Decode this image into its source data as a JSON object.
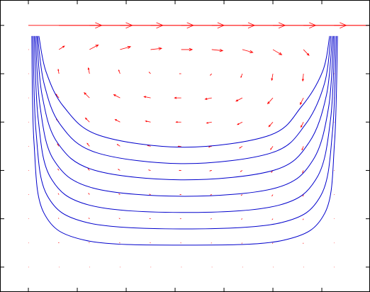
{
  "chart_data": {
    "type": "quiver",
    "xlim": [
      -0.116,
      1.397
    ],
    "ylim": [
      -0.103,
      1.105
    ],
    "xticks": [
      0,
      0.2,
      0.4,
      0.6,
      0.8,
      1,
      1.2
    ],
    "yticks": [
      0,
      0.2,
      0.4,
      0.6,
      0.8,
      1
    ],
    "quiver": {
      "color": "#ff0000",
      "scale": 0.3,
      "x": [
        0,
        0.125,
        0.25,
        0.375,
        0.5,
        0.625,
        0.75,
        0.875,
        1,
        1.125,
        1.25
      ],
      "y": [
        0,
        0.1,
        0.2,
        0.3,
        0.4,
        0.5,
        0.6,
        0.7,
        0.8,
        0.9,
        1
      ],
      "u": [
        [
          0,
          0,
          0,
          0,
          0,
          0,
          0,
          0,
          0,
          0,
          0
        ],
        [
          0,
          -0.003,
          -0.004,
          -0.005,
          -0.005,
          -0.005,
          -0.005,
          -0.005,
          -0.004,
          -0.003,
          0
        ],
        [
          0,
          -0.005,
          -0.008,
          -0.01,
          -0.01,
          -0.01,
          -0.01,
          -0.01,
          -0.008,
          -0.005,
          0
        ],
        [
          0,
          -0.008,
          -0.012,
          -0.014,
          -0.015,
          -0.015,
          -0.015,
          -0.014,
          -0.012,
          -0.008,
          0
        ],
        [
          0,
          -0.013,
          -0.02,
          -0.024,
          -0.025,
          -0.025,
          -0.025,
          -0.024,
          -0.02,
          -0.013,
          0
        ],
        [
          0,
          -0.02,
          -0.032,
          -0.038,
          -0.04,
          -0.04,
          -0.04,
          -0.038,
          -0.032,
          -0.02,
          0
        ],
        [
          0,
          -0.035,
          -0.056,
          -0.067,
          -0.07,
          -0.07,
          -0.07,
          -0.067,
          -0.056,
          -0.035,
          0
        ],
        [
          0,
          -0.045,
          -0.072,
          -0.086,
          -0.09,
          -0.09,
          -0.09,
          -0.086,
          -0.072,
          -0.045,
          0
        ],
        [
          0,
          -0.01,
          -0.016,
          -0.019,
          -0.02,
          -0.02,
          -0.02,
          -0.019,
          -0.016,
          -0.01,
          0
        ],
        [
          0,
          0.075,
          0.12,
          0.143,
          0.15,
          0.15,
          0.15,
          0.143,
          0.12,
          0.075,
          0
        ],
        [
          1,
          1,
          1,
          1,
          1,
          1,
          1,
          1,
          1,
          1,
          1
        ]
      ],
      "v": [
        [
          0,
          0,
          0,
          0,
          0,
          0,
          0,
          0,
          0,
          0,
          0
        ],
        [
          0,
          0.003,
          0.004,
          0.003,
          0.001,
          0,
          -0.001,
          -0.003,
          -0.005,
          -0.005,
          0
        ],
        [
          0,
          0.006,
          0.008,
          0.005,
          0.002,
          0,
          -0.002,
          -0.005,
          -0.009,
          -0.01,
          0
        ],
        [
          0,
          0.012,
          0.016,
          0.01,
          0.004,
          0,
          -0.004,
          -0.01,
          -0.018,
          -0.02,
          0
        ],
        [
          0,
          0.018,
          0.024,
          0.015,
          0.006,
          0,
          -0.006,
          -0.015,
          -0.027,
          -0.03,
          0
        ],
        [
          0,
          0.03,
          0.04,
          0.025,
          0.01,
          0,
          -0.01,
          -0.025,
          -0.045,
          -0.05,
          0
        ],
        [
          0,
          0.042,
          0.056,
          0.035,
          0.014,
          0,
          -0.014,
          -0.035,
          -0.063,
          -0.07,
          0
        ],
        [
          0,
          0.054,
          0.072,
          0.045,
          0.018,
          0,
          -0.018,
          -0.045,
          -0.081,
          -0.09,
          0
        ],
        [
          0,
          0.06,
          0.08,
          0.05,
          0.02,
          0,
          -0.02,
          -0.05,
          -0.09,
          -0.1,
          0
        ],
        [
          0,
          0.048,
          0.064,
          0.04,
          0.016,
          0,
          -0.016,
          -0.04,
          -0.072,
          -0.08,
          0
        ],
        [
          0,
          0,
          0,
          0,
          0,
          0,
          0,
          0,
          0,
          0,
          0
        ]
      ]
    },
    "contour_color": "#0000cc",
    "contours": [
      {
        "x": [
          0.043,
          0.072,
          0.145,
          0.29,
          0.638,
          0.986,
          1.116,
          1.203,
          1.232
        ],
        "y": [
          0.956,
          0.809,
          0.663,
          0.545,
          0.496,
          0.545,
          0.663,
          0.809,
          0.956
        ]
      },
      {
        "x": [
          0.038,
          0.064,
          0.131,
          0.28,
          0.638,
          0.995,
          1.132,
          1.211,
          1.237
        ],
        "y": [
          0.956,
          0.76,
          0.589,
          0.473,
          0.428,
          0.473,
          0.589,
          0.76,
          0.956
        ]
      },
      {
        "x": [
          0.034,
          0.056,
          0.118,
          0.27,
          0.638,
          1.005,
          1.148,
          1.219,
          1.243
        ],
        "y": [
          0.956,
          0.712,
          0.516,
          0.401,
          0.361,
          0.401,
          0.516,
          0.712,
          0.956
        ]
      },
      {
        "x": [
          0.029,
          0.048,
          0.104,
          0.261,
          0.638,
          1.014,
          1.164,
          1.228,
          1.248
        ],
        "y": [
          0.956,
          0.663,
          0.443,
          0.328,
          0.293,
          0.328,
          0.443,
          0.663,
          0.956
        ]
      },
      {
        "x": [
          0.024,
          0.04,
          0.091,
          0.251,
          0.638,
          1.024,
          1.18,
          1.236,
          1.253
        ],
        "y": [
          0.956,
          0.614,
          0.37,
          0.256,
          0.226,
          0.256,
          0.37,
          0.614,
          0.956
        ]
      },
      {
        "x": [
          0.019,
          0.031,
          0.077,
          0.241,
          0.638,
          1.034,
          1.196,
          1.244,
          1.259
        ],
        "y": [
          0.956,
          0.565,
          0.296,
          0.184,
          0.158,
          0.184,
          0.296,
          0.565,
          0.956
        ]
      },
      {
        "x": [
          0.014,
          0.023,
          0.064,
          0.232,
          0.638,
          1.043,
          1.212,
          1.252,
          1.264
        ],
        "y": [
          0.956,
          0.516,
          0.223,
          0.111,
          0.091,
          0.111,
          0.223,
          0.516,
          0.956
        ]
      }
    ]
  }
}
